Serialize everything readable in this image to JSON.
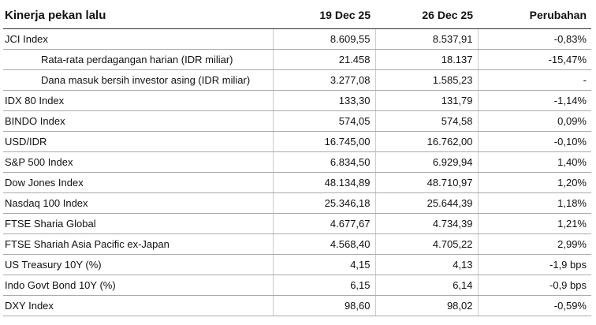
{
  "header": {
    "title": "Kinerja pekan lalu",
    "columns": [
      "19 Dec 25",
      "26 Dec 25",
      "Perubahan"
    ]
  },
  "table": {
    "rows": [
      [
        "JCI Index",
        "8.609,55",
        "8.537,91",
        "-0,83%"
      ],
      [
        "Rata-rata perdagangan harian (IDR miliar)",
        "21.458",
        "18.137",
        "-15,47%"
      ],
      [
        "Dana masuk bersih investor asing (IDR miliar)",
        "3.277,08",
        "1.585,23",
        "-"
      ],
      [
        "IDX 80 Index",
        "133,30",
        "131,79",
        "-1,14%"
      ],
      [
        "BINDO Index",
        "574,05",
        "574,58",
        "0,09%"
      ],
      [
        "USD/IDR",
        "16.745,00",
        "16.762,00",
        "-0,10%"
      ],
      [
        "S&P 500 Index",
        "6.834,50",
        "6.929,94",
        "1,40%"
      ],
      [
        "Dow Jones Index",
        "48.134,89",
        "48.710,97",
        "1,20%"
      ],
      [
        "Nasdaq 100 Index",
        "25.346,18",
        "25.644,39",
        "1,18%"
      ],
      [
        "FTSE Sharia Global",
        "4.677,67",
        "4.734,39",
        "1,21%"
      ],
      [
        "FTSE Shariah Asia Pacific ex-Japan",
        "4.568,40",
        "4.705,22",
        "2,99%"
      ],
      [
        "US Treasury 10Y (%)",
        "4,15",
        "4,13",
        "-1,9 bps"
      ],
      [
        "Indo Govt Bond 10Y (%)",
        "6,15",
        "6,14",
        "-0,9 bps"
      ],
      [
        "DXY Index",
        "98,60",
        "98,02",
        "-0,59%"
      ]
    ]
  }
}
